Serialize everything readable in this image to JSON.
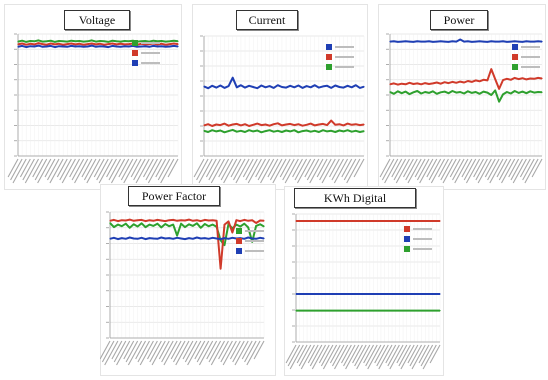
{
  "panels": [
    {
      "id": "voltage",
      "title": "Voltage",
      "chart_data": {
        "type": "line",
        "title": "Voltage",
        "ylim": [
          0,
          40
        ],
        "n_points": 40,
        "series": [
          {
            "color": "#2ea02e",
            "values": [
              37.5,
              37.8,
              37.4,
              37.7,
              37.6,
              37.9,
              37.5,
              37.6,
              37.8,
              37.4,
              37.7,
              37.6,
              37.5,
              37.8,
              37.6,
              37.7,
              37.5,
              37.6,
              37.9,
              37.5,
              37.7,
              37.6,
              37.4,
              37.8,
              37.6,
              37.5,
              37.7,
              37.6,
              37.8,
              37.5,
              37.6,
              37.7,
              37.5,
              37.8,
              37.6,
              37.7,
              37.5,
              37.6,
              37.8,
              37.6
            ]
          },
          {
            "color": "#d03a2a",
            "values": [
              36.6,
              36.9,
              36.5,
              36.8,
              36.6,
              37.0,
              36.7,
              36.5,
              36.9,
              36.6,
              36.8,
              36.5,
              36.7,
              36.9,
              36.6,
              36.8,
              36.5,
              36.7,
              36.9,
              36.6,
              36.8,
              36.5,
              36.7,
              36.9,
              36.6,
              36.8,
              36.6,
              36.7,
              36.9,
              36.5,
              36.8,
              36.6,
              36.7,
              36.9,
              36.6,
              36.8,
              36.5,
              36.7,
              36.9,
              36.7
            ]
          },
          {
            "color": "#1f3fb4",
            "values": [
              35.8,
              36.1,
              35.7,
              36.0,
              35.9,
              36.2,
              35.8,
              35.9,
              36.1,
              35.7,
              36.0,
              35.9,
              35.8,
              36.1,
              35.9,
              36.0,
              35.8,
              35.9,
              36.2,
              35.8,
              36.0,
              35.9,
              35.7,
              36.1,
              35.9,
              35.8,
              36.0,
              35.9,
              36.1,
              35.8,
              35.9,
              36.0,
              35.8,
              36.1,
              35.9,
              36.0,
              35.8,
              35.9,
              36.1,
              35.9
            ]
          }
        ]
      }
    },
    {
      "id": "current",
      "title": "Current",
      "chart_data": {
        "type": "line",
        "title": "Current",
        "ylim": [
          0,
          40
        ],
        "n_points": 40,
        "series": [
          {
            "color": "#1f3fb4",
            "values": [
              23.2,
              22.6,
              23.4,
              22.8,
              23.5,
              22.7,
              23.3,
              26.1,
              22.9,
              23.6,
              22.8,
              23.4,
              23.0,
              22.6,
              23.5,
              22.9,
              23.3,
              22.7,
              23.6,
              23.0,
              22.8,
              23.4,
              22.9,
              23.5,
              22.7,
              23.3,
              22.9,
              23.6,
              22.8,
              23.2,
              23.4,
              22.7,
              23.5,
              23.0,
              22.8,
              23.4,
              22.9,
              23.6,
              22.7,
              23.1
            ]
          },
          {
            "color": "#d03a2a",
            "values": [
              10.2,
              10.6,
              10.0,
              10.5,
              10.3,
              10.8,
              10.1,
              10.5,
              10.7,
              10.2,
              10.6,
              10.0,
              10.4,
              10.8,
              10.3,
              10.5,
              10.1,
              10.6,
              10.9,
              10.2,
              10.5,
              10.7,
              10.3,
              10.6,
              10.1,
              10.4,
              10.8,
              10.2,
              10.5,
              10.7,
              10.3,
              11.8,
              10.4,
              10.6,
              10.2,
              10.8,
              10.4,
              10.6,
              10.3,
              10.5
            ]
          },
          {
            "color": "#2ea02e",
            "values": [
              8.4,
              8.0,
              8.6,
              8.2,
              8.5,
              7.9,
              8.3,
              8.7,
              8.1,
              8.4,
              8.0,
              8.6,
              8.2,
              8.5,
              7.9,
              8.3,
              8.6,
              8.1,
              8.4,
              8.0,
              8.5,
              8.2,
              8.6,
              7.9,
              8.3,
              8.5,
              8.1,
              8.4,
              8.0,
              8.6,
              8.2,
              8.4,
              8.0,
              8.5,
              8.2,
              8.6,
              8.1,
              8.4,
              8.0,
              8.3
            ]
          }
        ]
      }
    },
    {
      "id": "power",
      "title": "Power",
      "chart_data": {
        "type": "line",
        "title": "Power",
        "ylim": [
          0,
          40
        ],
        "n_points": 40,
        "series": [
          {
            "color": "#1f3fb4",
            "values": [
              37.5,
              37.6,
              37.4,
              37.5,
              37.6,
              37.5,
              37.4,
              37.6,
              37.5,
              37.5,
              37.6,
              37.4,
              37.5,
              37.6,
              37.5,
              37.4,
              37.6,
              37.5,
              38.2,
              37.5,
              37.6,
              37.4,
              37.5,
              37.6,
              37.5,
              37.4,
              37.6,
              37.5,
              37.5,
              37.6,
              37.4,
              37.5,
              37.6,
              37.5,
              37.4,
              37.6,
              37.5,
              37.5,
              37.6,
              37.5
            ]
          },
          {
            "color": "#d03a2a",
            "values": [
              23.5,
              23.8,
              23.4,
              23.7,
              23.5,
              24.0,
              23.6,
              23.8,
              23.5,
              23.9,
              23.6,
              23.8,
              24.1,
              23.7,
              24.2,
              23.9,
              24.3,
              24.0,
              24.4,
              24.1,
              24.6,
              24.3,
              24.8,
              24.5,
              25.0,
              24.8,
              28.5,
              25.2,
              22.0,
              24.9,
              25.3,
              25.0,
              25.6,
              25.2,
              25.5,
              25.1,
              25.4,
              25.3,
              25.6,
              25.4
            ]
          },
          {
            "color": "#2ea02e",
            "values": [
              21.0,
              20.4,
              21.2,
              20.6,
              21.1,
              20.3,
              20.9,
              21.3,
              20.5,
              21.0,
              20.7,
              21.2,
              20.4,
              20.9,
              21.1,
              20.6,
              21.3,
              20.8,
              21.0,
              20.5,
              21.2,
              20.7,
              21.0,
              20.4,
              21.1,
              20.8,
              20.0,
              21.5,
              17.8,
              20.2,
              21.0,
              20.5,
              21.3,
              20.7,
              21.1,
              20.6,
              21.2,
              20.8,
              21.0,
              20.9
            ]
          }
        ]
      }
    },
    {
      "id": "power-factor",
      "title": "Power Factor",
      "chart_data": {
        "type": "line",
        "title": "Power Factor",
        "ylim": [
          0,
          40
        ],
        "n_points": 40,
        "series": [
          {
            "color": "#2ea02e",
            "values": [
              36.5,
              35.2,
              36.0,
              35.5,
              36.3,
              35.0,
              36.1,
              35.4,
              36.4,
              35.2,
              36.0,
              35.6,
              36.3,
              35.1,
              36.2,
              35.5,
              36.0,
              32.5,
              36.3,
              35.2,
              36.1,
              35.6,
              36.4,
              35.0,
              36.2,
              35.5,
              36.0,
              35.3,
              31.0,
              29.5,
              36.2,
              34.8,
              36.0,
              35.4,
              36.3,
              35.1,
              30.5,
              35.6,
              36.1,
              35.4
            ]
          },
          {
            "color": "#d03a2a",
            "values": [
              37.2,
              37.5,
              37.1,
              37.4,
              37.3,
              37.6,
              37.2,
              37.4,
              37.5,
              37.1,
              37.4,
              37.2,
              37.5,
              37.3,
              37.1,
              37.4,
              37.5,
              37.2,
              37.4,
              37.3,
              37.6,
              37.2,
              37.4,
              37.1,
              37.5,
              37.3,
              37.4,
              37.2,
              22.0,
              36.0,
              37.0,
              33.5,
              37.4,
              37.1,
              37.5,
              37.2,
              37.4,
              36.5,
              37.3,
              37.2
            ]
          },
          {
            "color": "#1f3fb4",
            "values": [
              31.5,
              31.8,
              31.4,
              31.7,
              31.5,
              31.9,
              31.6,
              31.5,
              31.8,
              31.4,
              31.7,
              31.6,
              31.5,
              31.9,
              31.6,
              31.7,
              31.5,
              31.8,
              31.6,
              31.4,
              31.7,
              31.5,
              31.9,
              31.6,
              31.7,
              31.5,
              31.8,
              31.6,
              31.4,
              31.7,
              31.5,
              31.8,
              31.6,
              31.7,
              31.5,
              31.9,
              31.6,
              31.5,
              31.8,
              31.6
            ]
          }
        ]
      }
    },
    {
      "id": "kwh-digital",
      "title": "KWh Digital",
      "chart_data": {
        "type": "line",
        "title": "KWh Digital",
        "ylim": [
          0,
          40
        ],
        "n_points": 40,
        "series": [
          {
            "color": "#d03a2a",
            "values": [
              37.8,
              37.8,
              37.8,
              37.8,
              37.8,
              37.8,
              37.8,
              37.8,
              37.8,
              37.8,
              37.8,
              37.8,
              37.8,
              37.8,
              37.8,
              37.8,
              37.8,
              37.8,
              37.8,
              37.8,
              37.8,
              37.8,
              37.8,
              37.8,
              37.8,
              37.8,
              37.8,
              37.8,
              37.8,
              37.8,
              37.8,
              37.8,
              37.8,
              37.8,
              37.8,
              37.8,
              37.8,
              37.8,
              37.8,
              37.8
            ]
          },
          {
            "color": "#1f3fb4",
            "values": [
              15.0,
              15.0,
              15.0,
              15.0,
              15.0,
              15.0,
              15.0,
              15.0,
              15.0,
              15.0,
              15.0,
              15.0,
              15.0,
              15.0,
              15.0,
              15.0,
              15.0,
              15.0,
              15.0,
              15.0,
              15.0,
              15.0,
              15.0,
              15.0,
              15.0,
              15.0,
              15.0,
              15.0,
              15.0,
              15.0,
              15.0,
              15.0,
              15.0,
              15.0,
              15.0,
              15.0,
              15.0,
              15.0,
              15.0,
              15.0
            ]
          },
          {
            "color": "#2ea02e",
            "values": [
              9.8,
              9.8,
              9.8,
              9.8,
              9.8,
              9.8,
              9.8,
              9.8,
              9.8,
              9.8,
              9.8,
              9.8,
              9.8,
              9.8,
              9.8,
              9.8,
              9.8,
              9.8,
              9.8,
              9.8,
              9.8,
              9.8,
              9.8,
              9.8,
              9.8,
              9.8,
              9.8,
              9.8,
              9.8,
              9.8,
              9.8,
              9.8,
              9.8,
              9.8,
              9.8,
              9.8,
              9.8,
              9.8,
              9.8,
              9.8
            ]
          }
        ]
      }
    }
  ]
}
